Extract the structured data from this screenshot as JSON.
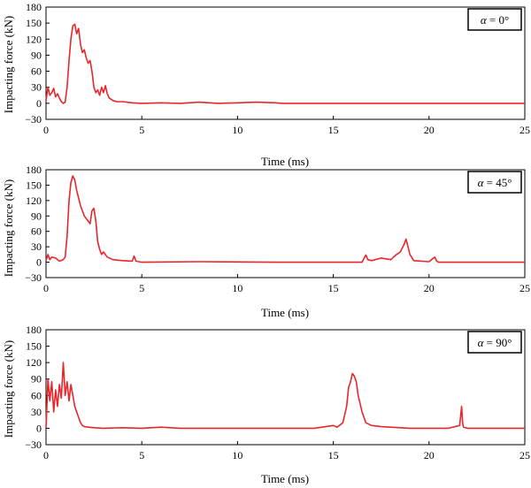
{
  "chart_data": [
    {
      "type": "line",
      "legend": {
        "symbol": "α",
        "text": " = 0°",
        "placement": "top-right"
      },
      "xlabel": "Time (ms)",
      "ylabel": "Impacting force (kN)",
      "xlim": [
        0,
        25
      ],
      "ylim": [
        -30,
        180
      ],
      "xticks": [
        0,
        5,
        10,
        15,
        20,
        25
      ],
      "yticks": [
        -30,
        0,
        30,
        60,
        90,
        120,
        150,
        180
      ],
      "grid": false,
      "color": "#e8262b",
      "series": [
        {
          "x": [
            0,
            0.1,
            0.2,
            0.3,
            0.4,
            0.5,
            0.6,
            0.7,
            0.8,
            0.9,
            1.0,
            1.1,
            1.2,
            1.3,
            1.4,
            1.5,
            1.6,
            1.7,
            1.8,
            1.9,
            2.0,
            2.1,
            2.2,
            2.3,
            2.4,
            2.5,
            2.6,
            2.7,
            2.8,
            2.9,
            3.0,
            3.1,
            3.2,
            3.3,
            3.5,
            3.7,
            4.0,
            4.5,
            5,
            6,
            7,
            8,
            9,
            10,
            11,
            12,
            12.3,
            13,
            15,
            20,
            25
          ],
          "y": [
            5,
            30,
            15,
            20,
            28,
            12,
            18,
            10,
            3,
            0,
            2,
            30,
            80,
            120,
            145,
            148,
            130,
            140,
            110,
            95,
            100,
            85,
            75,
            80,
            60,
            30,
            20,
            25,
            15,
            30,
            20,
            33,
            18,
            10,
            5,
            3,
            3,
            1,
            0,
            1,
            0,
            2,
            0,
            1,
            2,
            1,
            0,
            0,
            0,
            0,
            0
          ]
        }
      ]
    },
    {
      "type": "line",
      "legend": {
        "symbol": "α",
        "text": " = 45°",
        "placement": "top-right"
      },
      "xlabel": "Time (ms)",
      "ylabel": "Impacting force (kN)",
      "xlim": [
        0,
        25
      ],
      "ylim": [
        -30,
        180
      ],
      "xticks": [
        0,
        5,
        10,
        15,
        20,
        25
      ],
      "yticks": [
        -30,
        0,
        30,
        60,
        90,
        120,
        150,
        180
      ],
      "grid": false,
      "color": "#e8262b",
      "series": [
        {
          "x": [
            0,
            0.1,
            0.2,
            0.3,
            0.5,
            0.7,
            0.9,
            1.0,
            1.1,
            1.2,
            1.3,
            1.4,
            1.5,
            1.6,
            1.7,
            1.8,
            1.9,
            2.0,
            2.1,
            2.2,
            2.3,
            2.4,
            2.5,
            2.6,
            2.7,
            2.8,
            2.9,
            3.0,
            3.2,
            3.5,
            4.0,
            4.5,
            4.6,
            4.7,
            5,
            8,
            12,
            16.5,
            16.7,
            16.8,
            17.0,
            17.5,
            18.0,
            18.3,
            18.5,
            18.7,
            18.8,
            18.9,
            19.0,
            19.2,
            20,
            20.3,
            20.4,
            20.5,
            21,
            25
          ],
          "y": [
            3,
            15,
            5,
            10,
            8,
            2,
            5,
            10,
            50,
            120,
            155,
            168,
            160,
            140,
            125,
            110,
            100,
            90,
            85,
            80,
            75,
            100,
            105,
            80,
            40,
            25,
            15,
            20,
            10,
            5,
            3,
            2,
            12,
            2,
            0,
            1,
            0,
            0,
            14,
            5,
            3,
            8,
            5,
            15,
            20,
            35,
            45,
            30,
            15,
            3,
            1,
            10,
            2,
            0,
            0,
            0
          ]
        }
      ]
    },
    {
      "type": "line",
      "legend": {
        "symbol": "α",
        "text": " = 90°",
        "placement": "top-right"
      },
      "xlabel": "Time (ms)",
      "ylabel": "Impacting force (kN)",
      "xlim": [
        0,
        25
      ],
      "ylim": [
        -30,
        180
      ],
      "xticks": [
        0,
        5,
        10,
        15,
        20,
        25
      ],
      "yticks": [
        -30,
        0,
        30,
        60,
        90,
        120,
        150,
        180
      ],
      "grid": false,
      "color": "#e8262b",
      "series": [
        {
          "x": [
            0,
            0.1,
            0.2,
            0.3,
            0.4,
            0.5,
            0.6,
            0.7,
            0.8,
            0.9,
            1.0,
            1.1,
            1.2,
            1.3,
            1.4,
            1.5,
            1.6,
            1.7,
            1.8,
            1.9,
            2.0,
            2.2,
            2.5,
            3.0,
            4,
            5,
            6,
            7,
            8,
            10,
            12,
            14,
            15.0,
            15.2,
            15.5,
            15.7,
            15.8,
            15.9,
            16.0,
            16.1,
            16.2,
            16.3,
            16.5,
            16.7,
            17.0,
            17.5,
            18,
            19,
            20,
            21,
            21.6,
            21.7,
            21.75,
            21.8,
            22,
            25
          ],
          "y": [
            0,
            90,
            50,
            85,
            30,
            70,
            40,
            80,
            55,
            120,
            60,
            85,
            50,
            80,
            60,
            40,
            30,
            20,
            10,
            5,
            3,
            2,
            1,
            0,
            1,
            0,
            2,
            0,
            0,
            0,
            0,
            0,
            5,
            2,
            10,
            40,
            75,
            85,
            100,
            95,
            85,
            60,
            30,
            10,
            5,
            3,
            2,
            0,
            0,
            0,
            5,
            40,
            10,
            2,
            0,
            0
          ]
        }
      ]
    }
  ]
}
